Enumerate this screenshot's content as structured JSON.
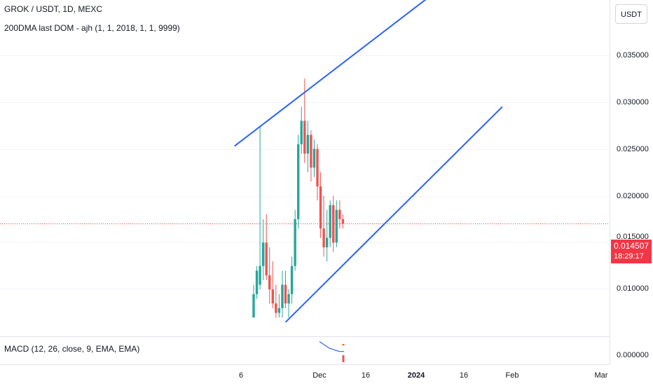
{
  "legend": {
    "symbol_line": "GROK / USDT, 1D, MEXC",
    "indicator_line": "200DMA last DOM - ajh (1, 1, 2018, 1, 1, 9999)"
  },
  "macd": {
    "label": "MACD (12, 26, close, 9, EMA, EMA)"
  },
  "price_scale": {
    "currency": "USDT",
    "ticks": [
      "0.035000",
      "0.030000",
      "0.025000",
      "0.020000",
      "0.010000",
      "0.000000"
    ],
    "partial_tick": "0.015000",
    "current_price": "0.014507",
    "countdown": "18:29:17"
  },
  "time_scale": {
    "ticks": [
      {
        "label": "6",
        "bold": false
      },
      {
        "label": "Dec",
        "bold": false
      },
      {
        "label": "16",
        "bold": false
      },
      {
        "label": "2024",
        "bold": true
      },
      {
        "label": "16",
        "bold": false
      },
      {
        "label": "Feb",
        "bold": false
      },
      {
        "label": "Mar",
        "bold": false
      }
    ]
  },
  "colors": {
    "up": "#26a69a",
    "down": "#ef5350",
    "trendline": "#2962ff",
    "price_line": "#f23645"
  },
  "chart_data": {
    "type": "candlestick",
    "ylim": [
      0.0025,
      0.0375
    ],
    "candles": [
      {
        "o": 0.0045,
        "h": 0.008,
        "l": 0.0045,
        "c": 0.007
      },
      {
        "o": 0.007,
        "h": 0.01,
        "l": 0.0065,
        "c": 0.0095
      },
      {
        "o": 0.008,
        "h": 0.025,
        "l": 0.0075,
        "c": 0.01
      },
      {
        "o": 0.01,
        "h": 0.015,
        "l": 0.0085,
        "c": 0.0125
      },
      {
        "o": 0.0125,
        "h": 0.0155,
        "l": 0.0085,
        "c": 0.009
      },
      {
        "o": 0.009,
        "h": 0.012,
        "l": 0.006,
        "c": 0.0075
      },
      {
        "o": 0.0075,
        "h": 0.0105,
        "l": 0.0055,
        "c": 0.006
      },
      {
        "o": 0.006,
        "h": 0.008,
        "l": 0.0045,
        "c": 0.005
      },
      {
        "o": 0.005,
        "h": 0.007,
        "l": 0.0045,
        "c": 0.0055
      },
      {
        "o": 0.0055,
        "h": 0.0095,
        "l": 0.0045,
        "c": 0.008
      },
      {
        "o": 0.008,
        "h": 0.0095,
        "l": 0.0055,
        "c": 0.006
      },
      {
        "o": 0.006,
        "h": 0.0075,
        "l": 0.0045,
        "c": 0.007
      },
      {
        "o": 0.007,
        "h": 0.011,
        "l": 0.006,
        "c": 0.01
      },
      {
        "o": 0.01,
        "h": 0.016,
        "l": 0.0095,
        "c": 0.015
      },
      {
        "o": 0.015,
        "h": 0.024,
        "l": 0.014,
        "c": 0.023
      },
      {
        "o": 0.023,
        "h": 0.027,
        "l": 0.022,
        "c": 0.0255
      },
      {
        "o": 0.0255,
        "h": 0.03,
        "l": 0.021,
        "c": 0.022
      },
      {
        "o": 0.022,
        "h": 0.0255,
        "l": 0.02,
        "c": 0.024
      },
      {
        "o": 0.024,
        "h": 0.0245,
        "l": 0.019,
        "c": 0.0205
      },
      {
        "o": 0.0205,
        "h": 0.0235,
        "l": 0.0195,
        "c": 0.0225
      },
      {
        "o": 0.0225,
        "h": 0.023,
        "l": 0.017,
        "c": 0.0185
      },
      {
        "o": 0.0185,
        "h": 0.02,
        "l": 0.013,
        "c": 0.014
      },
      {
        "o": 0.014,
        "h": 0.0175,
        "l": 0.011,
        "c": 0.012
      },
      {
        "o": 0.012,
        "h": 0.016,
        "l": 0.0105,
        "c": 0.013
      },
      {
        "o": 0.013,
        "h": 0.017,
        "l": 0.012,
        "c": 0.0165
      },
      {
        "o": 0.0165,
        "h": 0.0175,
        "l": 0.0115,
        "c": 0.0125
      },
      {
        "o": 0.0125,
        "h": 0.017,
        "l": 0.012,
        "c": 0.016
      },
      {
        "o": 0.016,
        "h": 0.017,
        "l": 0.014,
        "c": 0.015
      },
      {
        "o": 0.015,
        "h": 0.0155,
        "l": 0.014,
        "c": 0.0145
      }
    ],
    "trendlines": [
      {
        "x1_bar": -6,
        "y1": 0.0228,
        "x2_bar": 58,
        "y2": 0.0395
      },
      {
        "x1_bar": 10,
        "y1": 0.004,
        "x2_bar": 78,
        "y2": 0.027
      }
    ],
    "macd_line": [
      0.001,
      0.0008,
      0.0006,
      0.0005,
      0.0004,
      0.0004
    ]
  }
}
